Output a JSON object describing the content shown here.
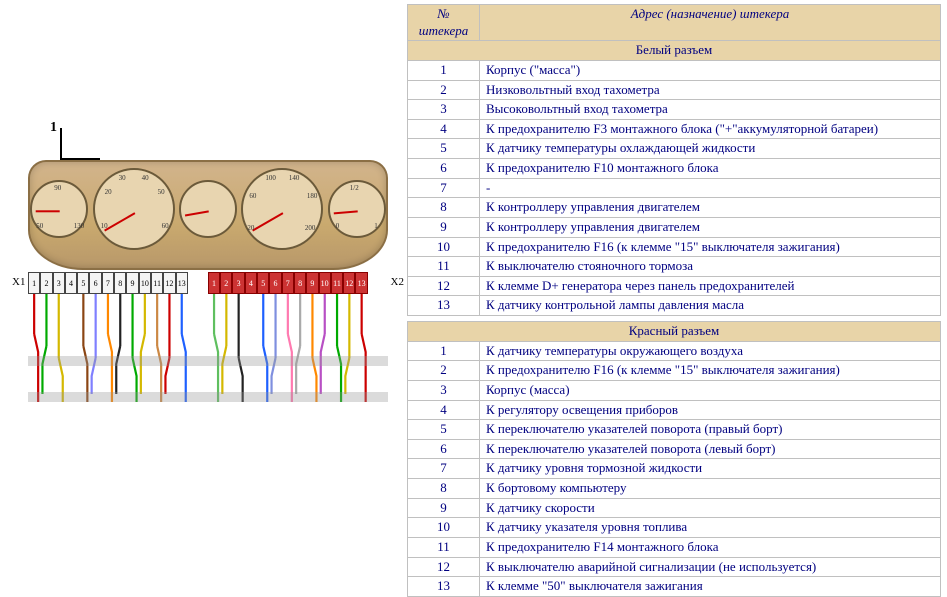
{
  "headers": {
    "col1": "№ штекера",
    "col2": "Адрес (назначение) штекера"
  },
  "sections": [
    {
      "title": "Белый разъем",
      "rows": [
        {
          "n": "1",
          "d": "Корпус (\"масса\")"
        },
        {
          "n": "2",
          "d": "Низковольтный вход тахометра"
        },
        {
          "n": "3",
          "d": "Высоковольтный вход тахометра"
        },
        {
          "n": "4",
          "d": "К предохранителю F3 монтажного блока (\"+\"аккумуляторной батареи)"
        },
        {
          "n": "5",
          "d": "К датчику температуры охлаждающей жидкости"
        },
        {
          "n": "6",
          "d": "К предохранителю F10 монтажного блока"
        },
        {
          "n": "7",
          "d": "-"
        },
        {
          "n": "8",
          "d": "К контроллеру управления двигателем"
        },
        {
          "n": "9",
          "d": "К контроллеру управления двигателем"
        },
        {
          "n": "10",
          "d": "К предохранителю F16 (к клемме \"15\" выключателя зажигания)"
        },
        {
          "n": "11",
          "d": "К выключателю стояночного тормоза"
        },
        {
          "n": "12",
          "d": "К клемме D+ генератора через панель предохранителей"
        },
        {
          "n": "13",
          "d": "К датчику контрольной лампы давления масла"
        }
      ]
    },
    {
      "title": "Красный разъем",
      "rows": [
        {
          "n": "1",
          "d": "К датчику температуры окружающего воздуха"
        },
        {
          "n": "2",
          "d": "К предохранителю F16 (к клемме \"15\" выключателя зажигания)"
        },
        {
          "n": "3",
          "d": "Корпус (масса)"
        },
        {
          "n": "4",
          "d": "К регулятору освещения приборов"
        },
        {
          "n": "5",
          "d": "К переключателю указателей поворота (правый борт)"
        },
        {
          "n": "6",
          "d": "К переключателю указателей поворота (левый борт)"
        },
        {
          "n": "7",
          "d": "К датчику уровня тормозной жидкости"
        },
        {
          "n": "8",
          "d": "К бортовому компьютеру"
        },
        {
          "n": "9",
          "d": "К датчику скорости"
        },
        {
          "n": "10",
          "d": "К датчику указателя уровня топлива"
        },
        {
          "n": "11",
          "d": "К предохранителю F14 монтажного блока"
        },
        {
          "n": "12",
          "d": "К выключателю аварийной сигнализации (не используется)"
        },
        {
          "n": "13",
          "d": "К клемме \"50\" выключателя зажигания"
        }
      ]
    }
  ],
  "cluster": {
    "callout": "1",
    "x1_label": "X1",
    "x2_label": "X2",
    "white_pins": [
      "1",
      "2",
      "3",
      "4",
      "5",
      "6",
      "7",
      "8",
      "9",
      "10",
      "11",
      "12",
      "13"
    ],
    "red_pins": [
      "1",
      "2",
      "3",
      "4",
      "5",
      "6",
      "7",
      "8",
      "9",
      "10",
      "11",
      "12",
      "13"
    ],
    "wire_colors_white": [
      "#cc0000",
      "#00aa00",
      "#d4b800",
      "#ffffff",
      "#8b4513",
      "#7f7fff",
      "#ff8800",
      "#222",
      "#00aa00",
      "#d4b800",
      "#cc8844",
      "#cc0000",
      "#1e60ff"
    ],
    "wire_colors_red": [
      "#5fbf5f",
      "#d4b800",
      "#222",
      "#fff",
      "#1e60ff",
      "#7f8fdf",
      "#ff7ab0",
      "#aaa",
      "#ff8800",
      "#b84fc4",
      "#00aa00",
      "#d4b800",
      "#cc0000"
    ],
    "gauges": [
      {
        "needle_rot": -90
      },
      {
        "needle_rot": -120
      },
      {
        "needle_rot": -100
      },
      {
        "needle_rot": -120
      },
      {
        "needle_rot": -95
      }
    ],
    "tacho_nums": [
      "10",
      "20",
      "30",
      "40",
      "50",
      "60",
      "70"
    ],
    "speedo_nums": [
      "20",
      "40",
      "60",
      "80",
      "100",
      "120",
      "140",
      "160",
      "180",
      "200"
    ],
    "temp_nums": [
      "50",
      "90",
      "130"
    ],
    "fuel_nums": [
      "0",
      "1/2",
      "1"
    ]
  },
  "colors": {
    "header_bg": "#e8d4a8",
    "text": "#000080",
    "border": "#c0c0c0"
  }
}
